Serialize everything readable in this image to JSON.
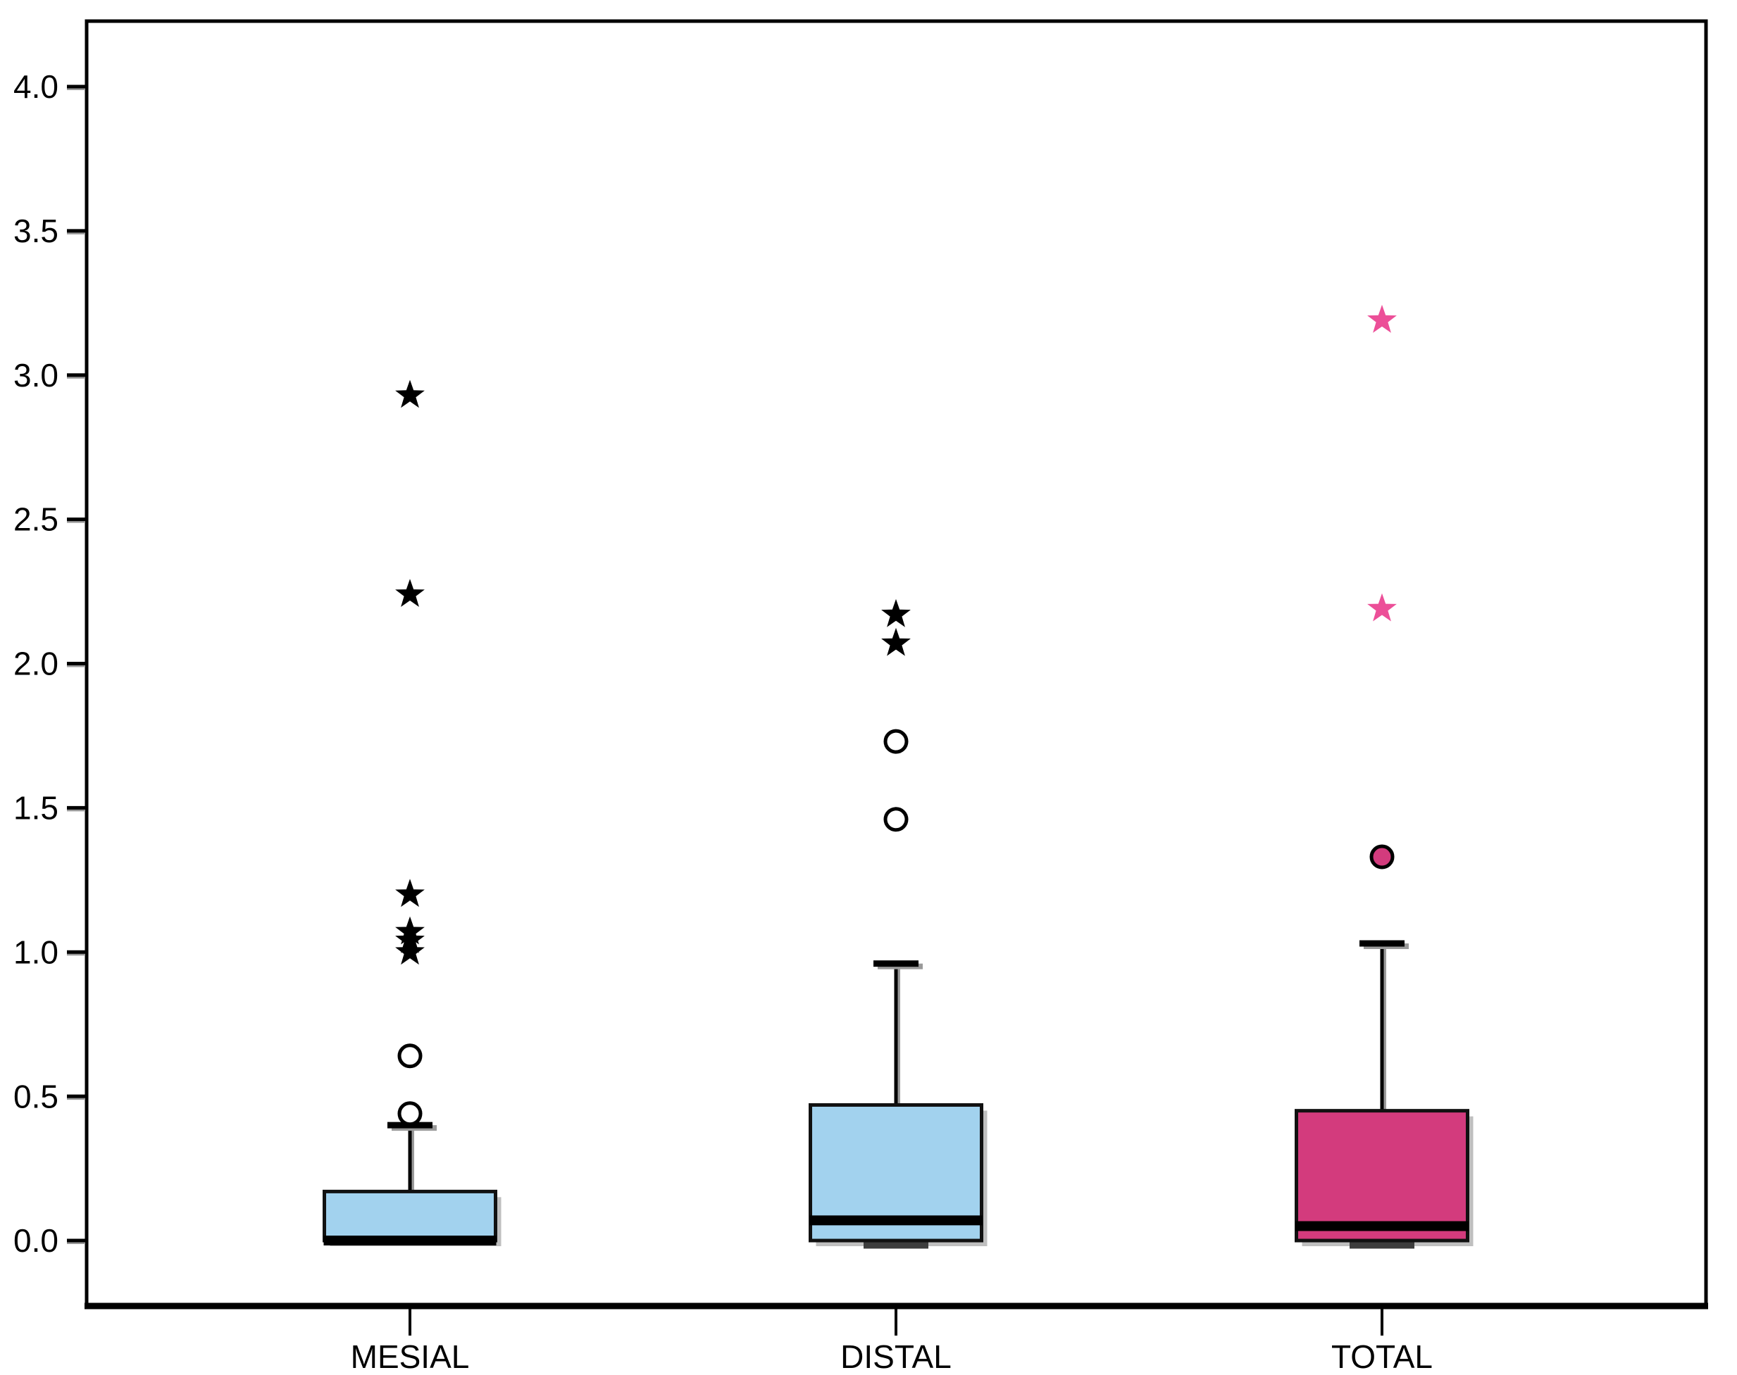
{
  "chart_data": {
    "type": "box",
    "title": "",
    "xlabel": "",
    "ylabel": "",
    "grid": false,
    "background": "#ffffff",
    "axis_color": "#000000",
    "categories": [
      "MESIAL",
      "DISTAL",
      "TOTAL"
    ],
    "ylim": [
      -0.222,
      4.227
    ],
    "yticks": {
      "values": [
        0.0,
        0.5,
        1.0,
        1.5,
        2.0,
        2.5,
        3.0,
        3.5,
        4.0
      ],
      "labels": [
        "0.0",
        "0.5",
        "1.0",
        "1.5",
        "2.0",
        "2.5",
        "3.0",
        "3.5",
        "4.0"
      ]
    },
    "series": [
      {
        "name": "MESIAL",
        "fill": "#a2d2ee",
        "outline": "#111111",
        "q1": 0.0,
        "median": 0.0,
        "q3": 0.17,
        "whisker_low": null,
        "whisker_high": 0.4,
        "outliers_circle": [
          0.64,
          0.44
        ],
        "outliers_circle_filled": [],
        "outliers_star": [
          2.93,
          2.24,
          1.2,
          1.07,
          1.04,
          1.0
        ],
        "outlier_color": "#000000"
      },
      {
        "name": "DISTAL",
        "fill": "#a2d2ee",
        "outline": "#111111",
        "q1": 0.0,
        "median": 0.07,
        "q3": 0.47,
        "whisker_low": 0.0,
        "whisker_high": 0.96,
        "outliers_circle": [
          1.73,
          1.46
        ],
        "outliers_circle_filled": [],
        "outliers_star": [
          2.17,
          2.07
        ],
        "outlier_color": "#000000"
      },
      {
        "name": "TOTAL",
        "fill": "#d33b7d",
        "outline": "#111111",
        "q1": 0.0,
        "median": 0.05,
        "q3": 0.45,
        "whisker_low": 0.0,
        "whisker_high": 1.03,
        "outliers_circle": [],
        "outliers_circle_filled": [
          1.33
        ],
        "outliers_star": [
          3.19,
          2.19
        ],
        "outlier_color": "#ec4f98"
      }
    ]
  }
}
